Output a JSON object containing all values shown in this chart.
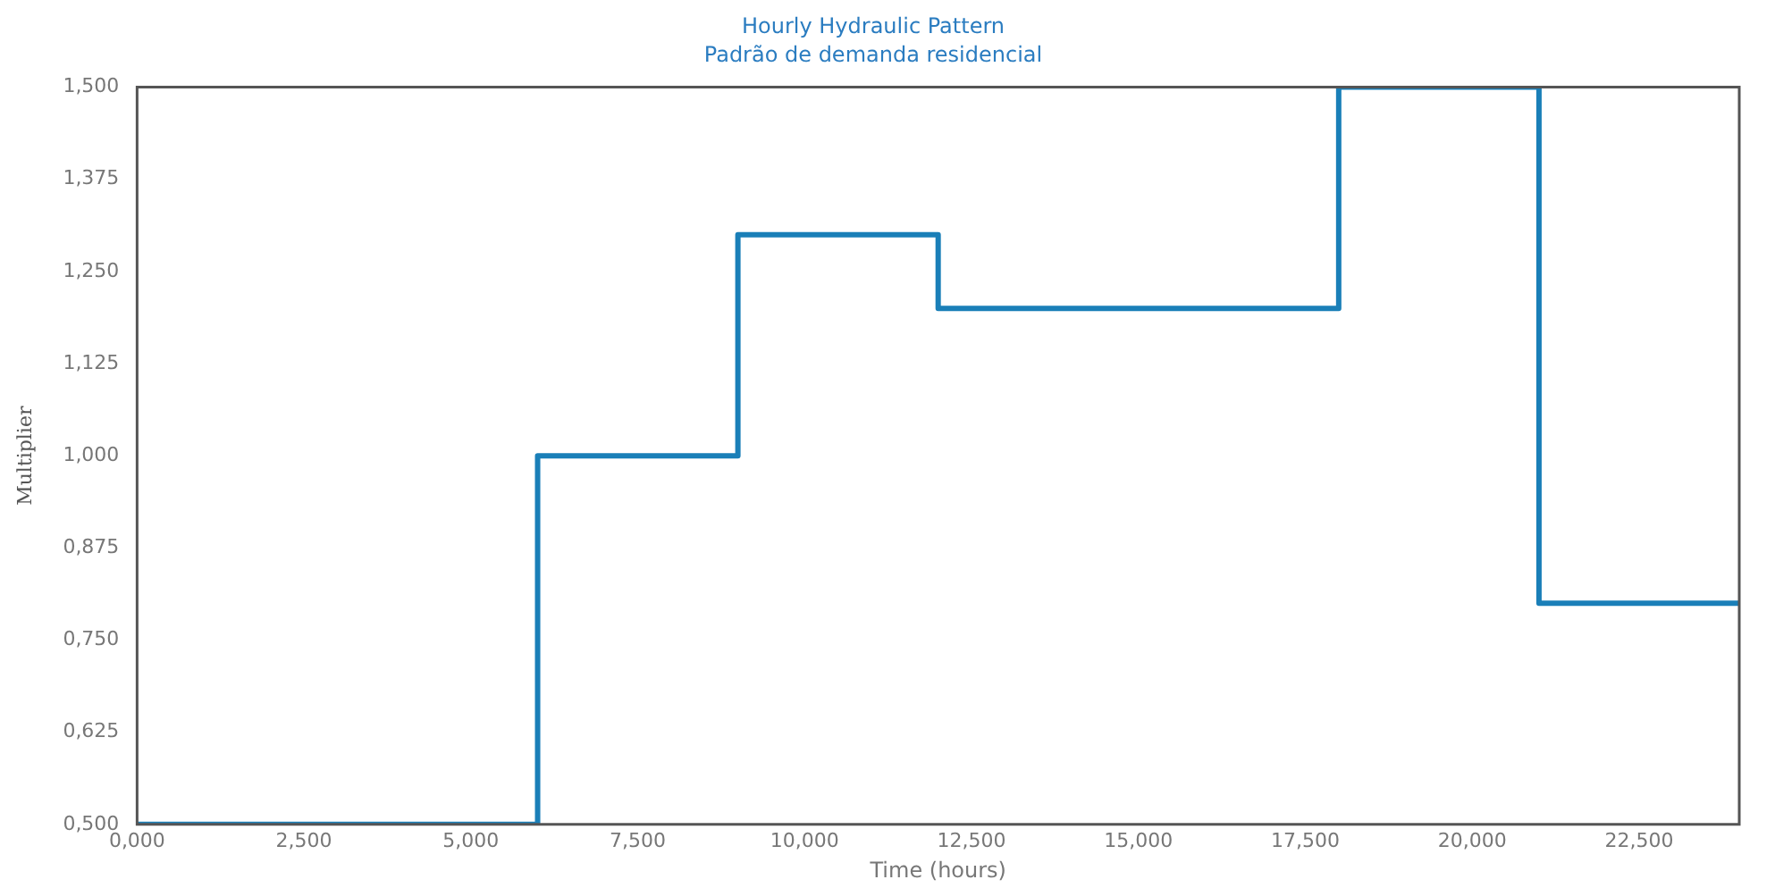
{
  "chart_data": {
    "type": "step",
    "title": "Hourly Hydraulic Pattern",
    "subtitle": "Padrão de demanda residencial",
    "xlabel": "Time (hours)",
    "ylabel": "Multiplier",
    "x": [
      0,
      6,
      9,
      12,
      18,
      21,
      24
    ],
    "series": [
      {
        "color": "#1a7fb8",
        "values": [
          0.5,
          1.0,
          1.3,
          1.2,
          1.5,
          0.8,
          0.8
        ]
      }
    ],
    "xlim": [
      0,
      24
    ],
    "xticks": [
      {
        "value": 0,
        "label": "0,000"
      },
      {
        "value": 2.5,
        "label": "2,500"
      },
      {
        "value": 5,
        "label": "5,000"
      },
      {
        "value": 7.5,
        "label": "7,500"
      },
      {
        "value": 10,
        "label": "10,000"
      },
      {
        "value": 12.5,
        "label": "12,500"
      },
      {
        "value": 15,
        "label": "15,000"
      },
      {
        "value": 17.5,
        "label": "17,500"
      },
      {
        "value": 20,
        "label": "20,000"
      },
      {
        "value": 22.5,
        "label": "22,500"
      }
    ],
    "ylim": [
      0.5,
      1.5
    ],
    "yticks": [
      {
        "value": 0.5,
        "label": "0,500"
      },
      {
        "value": 0.625,
        "label": "0,625"
      },
      {
        "value": 0.75,
        "label": "0,750"
      },
      {
        "value": 0.875,
        "label": "0,875"
      },
      {
        "value": 1,
        "label": "1,000"
      },
      {
        "value": 1.125,
        "label": "1,125"
      },
      {
        "value": 1.25,
        "label": "1,250"
      },
      {
        "value": 1.375,
        "label": "1,375"
      },
      {
        "value": 1.5,
        "label": "1,500"
      }
    ],
    "grid": false,
    "legend": false,
    "marker": "none",
    "line_style": "solid"
  }
}
